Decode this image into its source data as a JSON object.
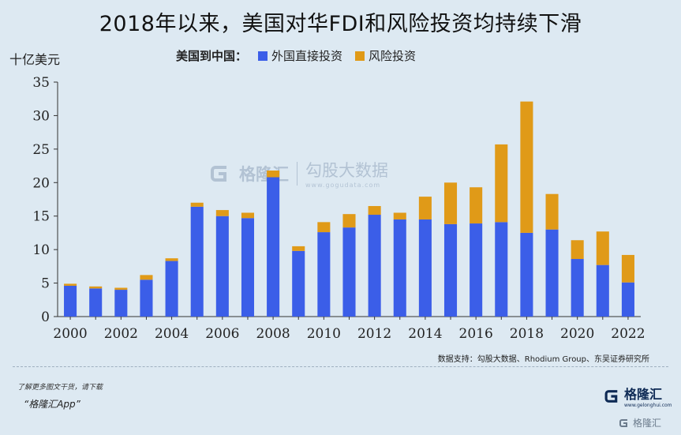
{
  "title": "2018年以来，美国对华FDI和风险投资均持续下滑",
  "unit_label": "十亿美元",
  "legend": {
    "title": "美国到中国：",
    "items": [
      {
        "label": "外国直接投资",
        "color": "#3b5ee8"
      },
      {
        "label": "风险投资",
        "color": "#e09a18"
      }
    ]
  },
  "source": "数据支持：勾股大数据、Rhodium Group、东吴证券研究所",
  "watermark": {
    "name": "格隆汇",
    "slogan": "勾股大数据",
    "url": "www.gogudata.com"
  },
  "footer": {
    "note": "了解更多图文干货，请下载",
    "app": "“格隆汇App”",
    "logo_name": "格隆汇",
    "logo_url": "www.gelonghui.com",
    "badge": "格隆汇"
  },
  "chart_data": {
    "type": "bar",
    "stacked": true,
    "categories": [
      "2000",
      "2001",
      "2002",
      "2003",
      "2004",
      "2005",
      "2006",
      "2007",
      "2008",
      "2009",
      "2010",
      "2011",
      "2012",
      "2013",
      "2014",
      "2015",
      "2016",
      "2017",
      "2018",
      "2019",
      "2020",
      "2021",
      "2022"
    ],
    "x_tick_labels": [
      "2000",
      "2002",
      "2004",
      "2006",
      "2008",
      "2010",
      "2012",
      "2014",
      "2016",
      "2018",
      "2020",
      "2022"
    ],
    "series": [
      {
        "name": "外国直接投资",
        "color": "#3b5ee8",
        "values": [
          4.6,
          4.2,
          4.0,
          5.5,
          8.3,
          16.4,
          15.0,
          14.7,
          20.8,
          9.8,
          12.6,
          13.3,
          15.2,
          14.5,
          14.5,
          13.8,
          13.9,
          14.1,
          12.5,
          13.0,
          8.6,
          7.7,
          5.1
        ]
      },
      {
        "name": "风险投资",
        "color": "#e09a18",
        "values": [
          0.3,
          0.3,
          0.3,
          0.7,
          0.4,
          0.6,
          0.9,
          0.8,
          1.0,
          0.7,
          1.5,
          2.0,
          1.3,
          1.0,
          3.4,
          6.2,
          5.4,
          11.6,
          19.6,
          5.3,
          2.8,
          5.0,
          4.1
        ]
      }
    ],
    "ylim": [
      0,
      35
    ],
    "yticks": [
      0,
      5,
      10,
      15,
      20,
      25,
      30,
      35
    ],
    "grid": false,
    "legend_position": "top"
  }
}
